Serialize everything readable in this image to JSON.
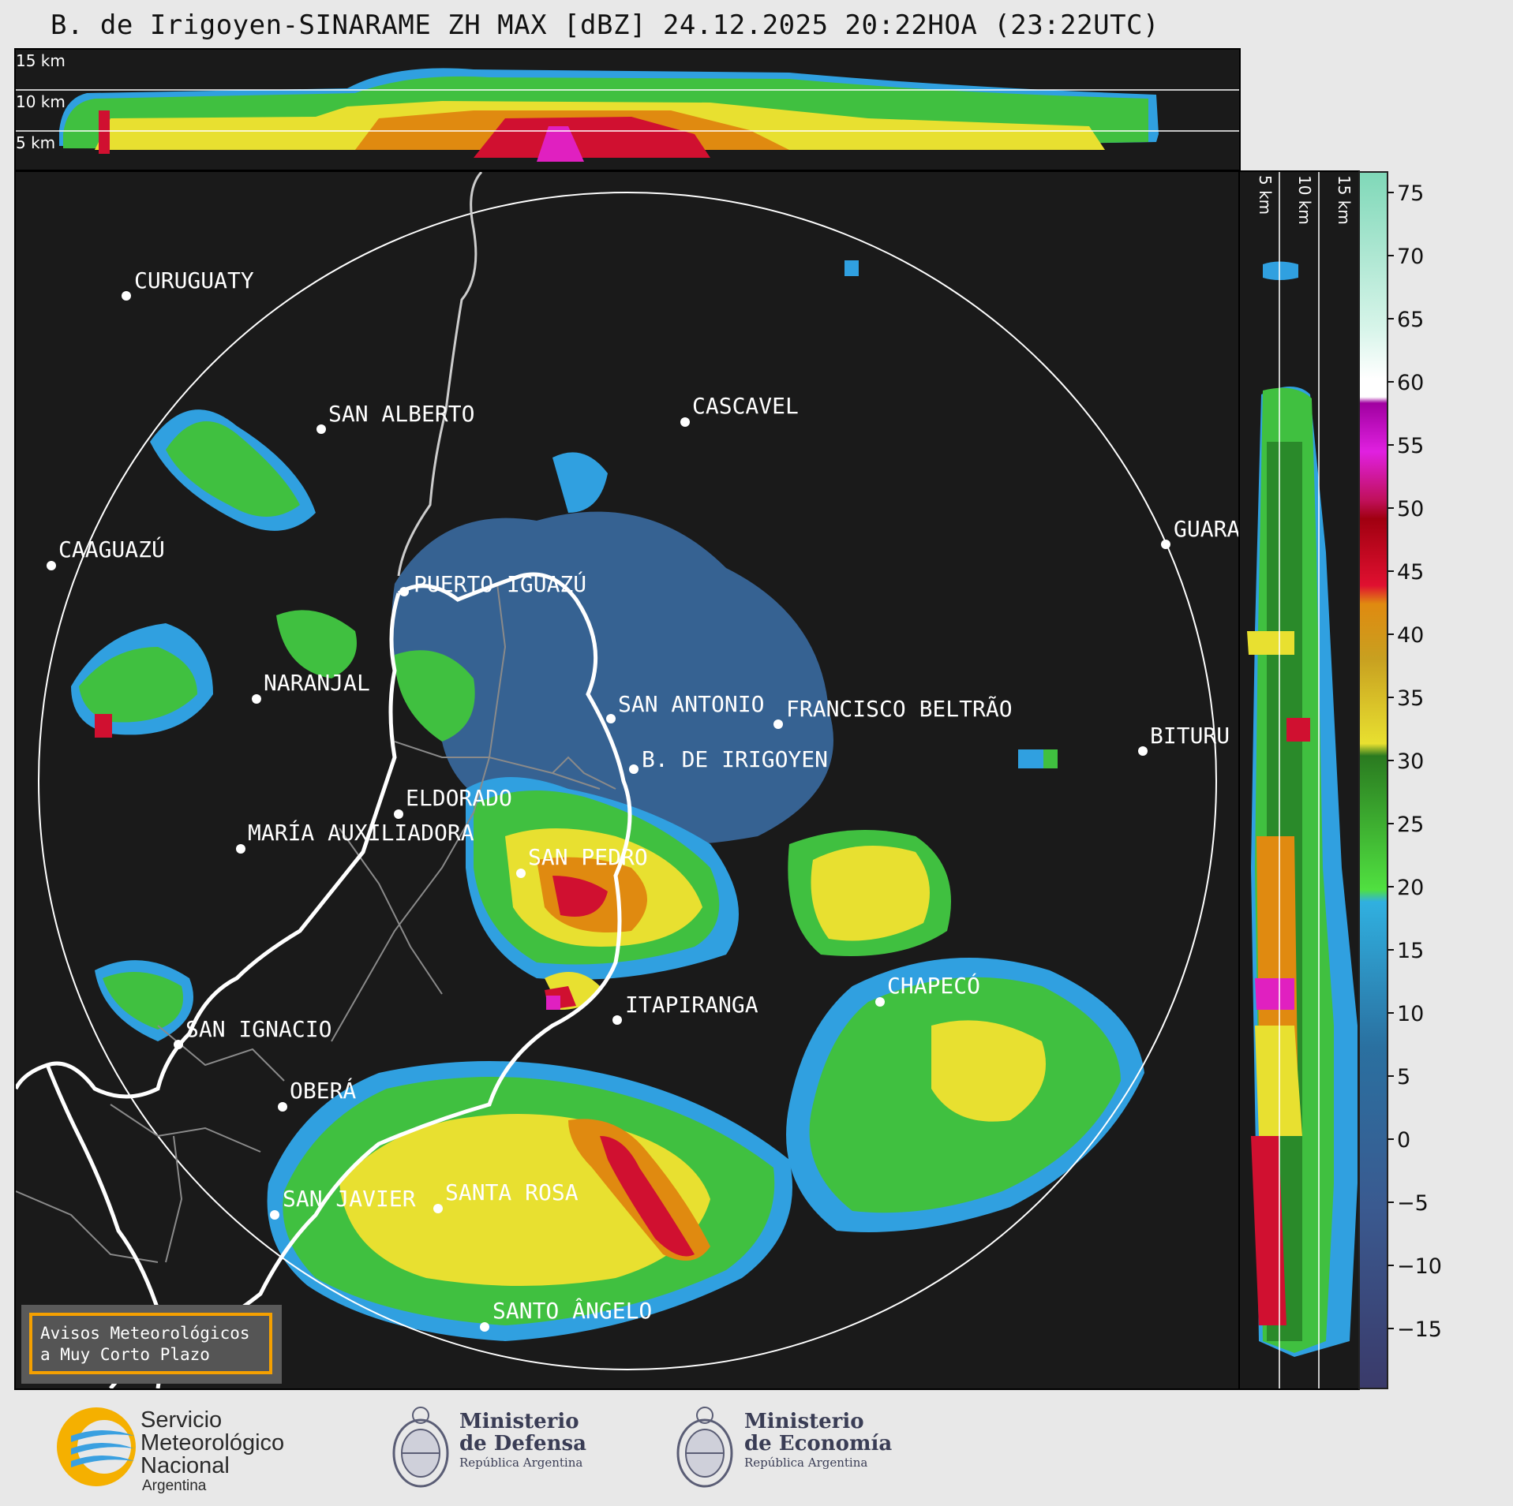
{
  "title": "B. de Irigoyen-SINARAME ZH MAX [dBZ] 24.12.2025 20:22HOA (23:22UTC)",
  "top_panel": {
    "height_labels": [
      "15 km",
      "10 km",
      "5 km"
    ]
  },
  "side_panel": {
    "height_labels": [
      "5 km",
      "10 km",
      "15 km"
    ]
  },
  "cities": [
    {
      "name": "CURUGUATY"
    },
    {
      "name": "SAN ALBERTO"
    },
    {
      "name": "CASCAVEL"
    },
    {
      "name": "CAAGUAZÚ"
    },
    {
      "name": "GUARA"
    },
    {
      "name": "PUERTO IGUAZÚ"
    },
    {
      "name": "NARANJAL"
    },
    {
      "name": "SAN ANTONIO"
    },
    {
      "name": "FRANCISCO BELTRÃO"
    },
    {
      "name": "BITURU"
    },
    {
      "name": "B. DE IRIGOYEN"
    },
    {
      "name": "ELDORADO"
    },
    {
      "name": "MARÍA AUXILIADORA"
    },
    {
      "name": "SAN PEDRO"
    },
    {
      "name": "CHAPECÓ"
    },
    {
      "name": "ITAPIRANGA"
    },
    {
      "name": "SAN IGNACIO"
    },
    {
      "name": "OBERÁ"
    },
    {
      "name": "SAN JAVIER"
    },
    {
      "name": "SANTA ROSA"
    },
    {
      "name": "SANTO ÂNGELO"
    }
  ],
  "warning_box": {
    "line1": "Avisos Meteorológicos",
    "line2": "a Muy Corto Plazo",
    "border_color": "#f5a000"
  },
  "colorbar": {
    "unit": "dBZ",
    "ticks": [
      "75",
      "70",
      "65",
      "60",
      "55",
      "50",
      "45",
      "40",
      "35",
      "30",
      "25",
      "20",
      "15",
      "10",
      "5",
      "0",
      "−5",
      "−10",
      "−15"
    ],
    "colors": {
      "top_teal": "#7fd8b8",
      "white": "#ffffff",
      "magenta": "#d020d0",
      "dark_red": "#b00010",
      "orange": "#e08a10",
      "yellow": "#e8e030",
      "green": "#30b030",
      "light_blue": "#30a0e0",
      "blue_gray": "#3a5a90",
      "navy": "#3a3a6a"
    }
  },
  "logos": {
    "smn_line1": "Servicio",
    "smn_line2": "Meteorológico",
    "smn_line3": "Nacional",
    "smn_line4": "Argentina",
    "defensa_line1": "Ministerio",
    "defensa_line2": "de Defensa",
    "defensa_line3": "República Argentina",
    "economia_line1": "Ministerio",
    "economia_line2": "de Economía",
    "economia_line3": "República Argentina"
  }
}
